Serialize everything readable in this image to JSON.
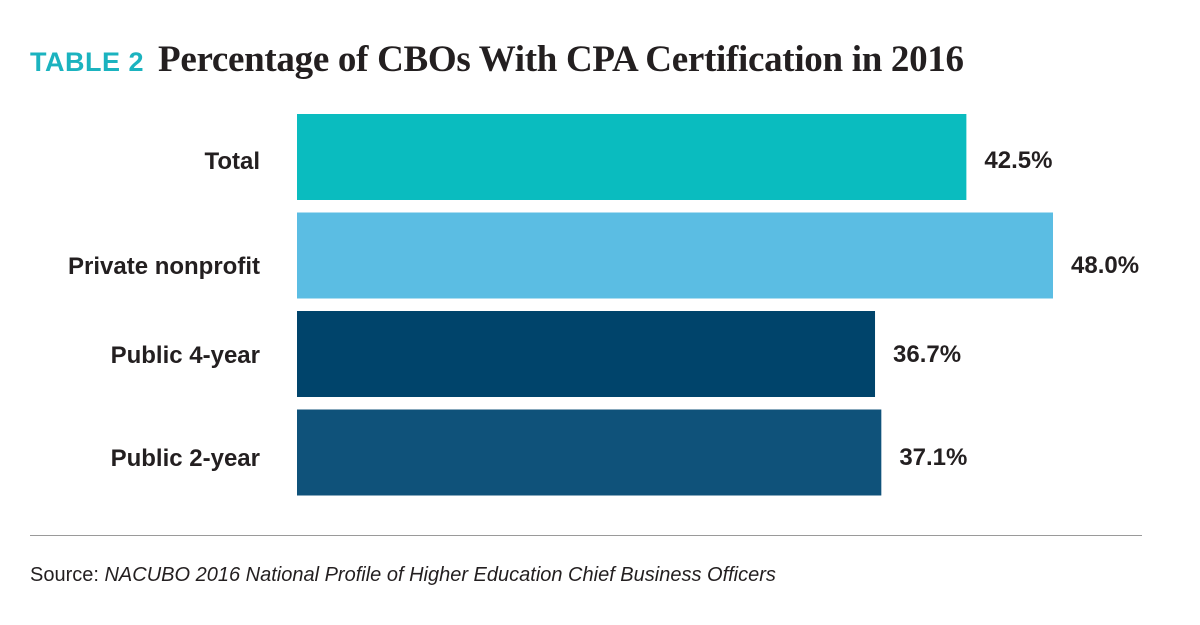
{
  "header": {
    "tag": "TABLE 2",
    "title": "Percentage of CBOs With CPA Certification in 2016"
  },
  "chart_data": {
    "type": "bar",
    "orientation": "horizontal",
    "categories": [
      "Total",
      "Private nonprofit",
      "Public 4-year",
      "Public 2-year"
    ],
    "values": [
      42.5,
      48.0,
      36.7,
      37.1
    ],
    "value_labels": [
      "42.5%",
      "48.0%",
      "36.7%",
      "37.1%"
    ],
    "colors": [
      "#0abcbf",
      "#5bbde3",
      "#00446b",
      "#0f527a"
    ],
    "xlim": [
      0,
      50
    ],
    "grid": false,
    "legend": "none"
  },
  "footer": {
    "source_prefix": "Source: ",
    "source_title": "NACUBO 2016 National Profile of Higher Education Chief Business Officers"
  }
}
